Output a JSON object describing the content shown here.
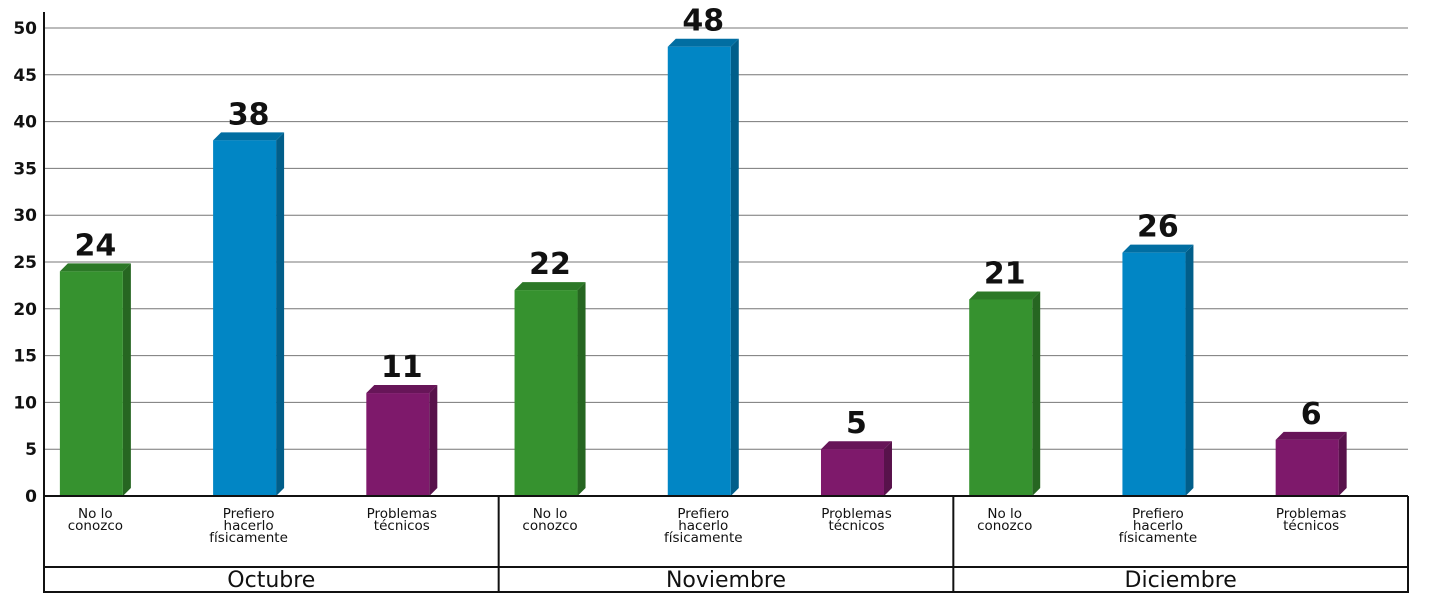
{
  "chart_data": {
    "type": "bar",
    "ylim": [
      0,
      50
    ],
    "yticks": [
      0,
      5,
      10,
      15,
      20,
      25,
      30,
      35,
      40,
      45,
      50
    ],
    "grid": true,
    "colors": {
      "No lo conozco": "#36922f",
      "Prefiero hacerlo físicamente": "#0186c5",
      "Problemas técnicos": "#7e196b"
    },
    "groups": [
      {
        "label": "Octubre",
        "bars": [
          {
            "category": "No lo conozco",
            "lines": [
              "No lo",
              "conozco"
            ],
            "value": 24
          },
          {
            "category": "Prefiero hacerlo físicamente",
            "lines": [
              "Prefiero",
              "hacerlo",
              "físicamente"
            ],
            "value": 38
          },
          {
            "category": "Problemas técnicos",
            "lines": [
              "Problemas",
              "técnicos"
            ],
            "value": 11
          }
        ]
      },
      {
        "label": "Noviembre",
        "bars": [
          {
            "category": "No lo conozco",
            "lines": [
              "No lo",
              "conozco"
            ],
            "value": 22
          },
          {
            "category": "Prefiero hacerlo físicamente",
            "lines": [
              "Prefiero",
              "hacerlo",
              "físicamente"
            ],
            "value": 48
          },
          {
            "category": "Problemas técnicos",
            "lines": [
              "Problemas",
              "técnicos"
            ],
            "value": 5
          }
        ]
      },
      {
        "label": "Diciembre",
        "bars": [
          {
            "category": "No lo conozco",
            "lines": [
              "No lo",
              "conozco"
            ],
            "value": 21
          },
          {
            "category": "Prefiero hacerlo físicamente",
            "lines": [
              "Prefiero",
              "hacerlo",
              "físicamente"
            ],
            "value": 26
          },
          {
            "category": "Problemas técnicos",
            "lines": [
              "Problemas",
              "técnicos"
            ],
            "value": 6
          }
        ]
      }
    ]
  }
}
